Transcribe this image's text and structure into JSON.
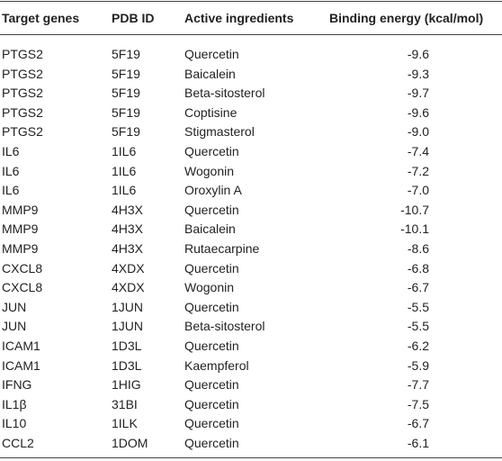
{
  "table": {
    "header": [
      "Target genes",
      "PDB ID",
      "Active ingredients",
      "Binding energy (kcal/mol)"
    ],
    "rows": [
      [
        "PTGS2",
        "5F19",
        "Quercetin",
        "-9.6"
      ],
      [
        "PTGS2",
        "5F19",
        "Baicalein",
        "-9.3"
      ],
      [
        "PTGS2",
        "5F19",
        "Beta-sitosterol",
        "-9.7"
      ],
      [
        "PTGS2",
        "5F19",
        "Coptisine",
        "-9.6"
      ],
      [
        "PTGS2",
        "5F19",
        "Stigmasterol",
        "-9.0"
      ],
      [
        "IL6",
        "1IL6",
        "Quercetin",
        "-7.4"
      ],
      [
        "IL6",
        "1IL6",
        "Wogonin",
        "-7.2"
      ],
      [
        "IL6",
        "1IL6",
        "Oroxylin A",
        "-7.0"
      ],
      [
        "MMP9",
        "4H3X",
        "Quercetin",
        "-10.7"
      ],
      [
        "MMP9",
        "4H3X",
        "Baicalein",
        "-10.1"
      ],
      [
        "MMP9",
        "4H3X",
        "Rutaecarpine",
        "-8.6"
      ],
      [
        "CXCL8",
        "4XDX",
        "Quercetin",
        "-6.8"
      ],
      [
        "CXCL8",
        "4XDX",
        "Wogonin",
        "-6.7"
      ],
      [
        "JUN",
        "1JUN",
        "Quercetin",
        "-5.5"
      ],
      [
        "JUN",
        "1JUN",
        "Beta-sitosterol",
        "-5.5"
      ],
      [
        "ICAM1",
        "1D3L",
        "Quercetin",
        "-6.2"
      ],
      [
        "ICAM1",
        "1D3L",
        "Kaempferol",
        "-5.9"
      ],
      [
        "IFNG",
        "1HIG",
        "Quercetin",
        "-7.7"
      ],
      [
        "IL1β",
        "31BI",
        "Quercetin",
        "-7.5"
      ],
      [
        "IL10",
        "1ILK",
        "Quercetin",
        "-6.7"
      ],
      [
        "CCL2",
        "1DOM",
        "Quercetin",
        "-6.1"
      ]
    ]
  }
}
